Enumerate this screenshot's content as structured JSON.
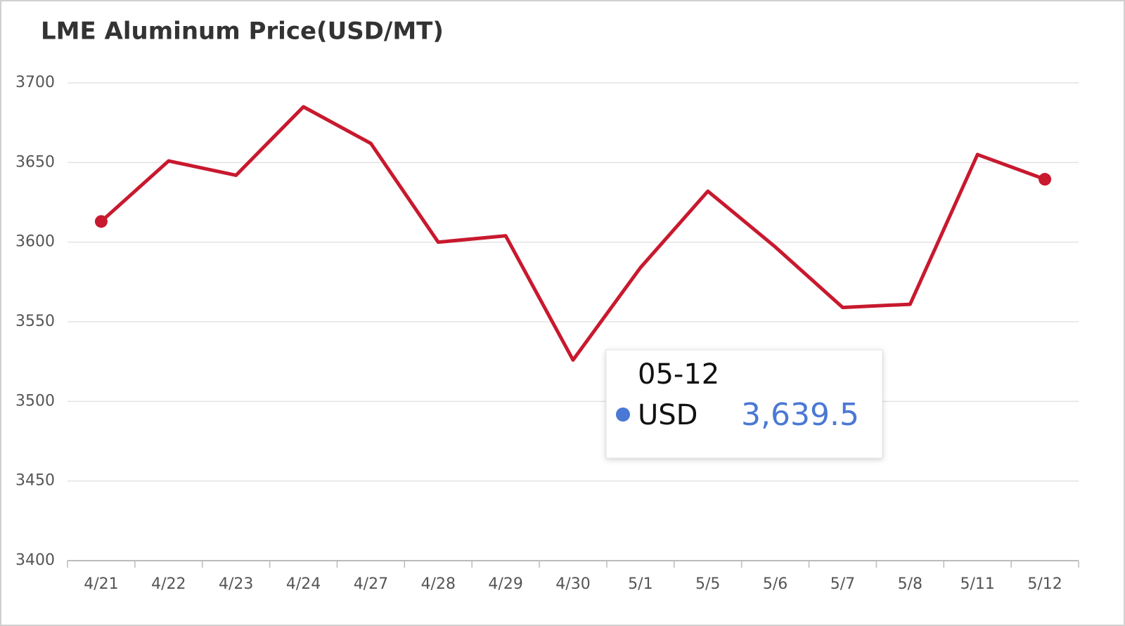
{
  "chart_data": {
    "type": "line",
    "title": "LME Aluminum Price(USD/MT)",
    "categories": [
      "4/21",
      "4/22",
      "4/23",
      "4/24",
      "4/27",
      "4/28",
      "4/29",
      "4/30",
      "5/1",
      "5/5",
      "5/6",
      "5/7",
      "5/8",
      "5/11",
      "5/12"
    ],
    "series": [
      {
        "name": "USD",
        "color": "#c8192e",
        "values": [
          3613,
          3651,
          3642,
          3685,
          3662,
          3600,
          3604,
          3526,
          3584,
          3632,
          3597,
          3559,
          3561,
          3655,
          3639.5
        ]
      }
    ],
    "ylim": [
      3400,
      3700
    ],
    "yticks": [
      3400,
      3450,
      3500,
      3550,
      3600,
      3650,
      3700
    ],
    "grid": true,
    "tooltip": {
      "title": "05-12",
      "value_label": "3,639.5",
      "dot_color": "#4a78d4"
    }
  }
}
